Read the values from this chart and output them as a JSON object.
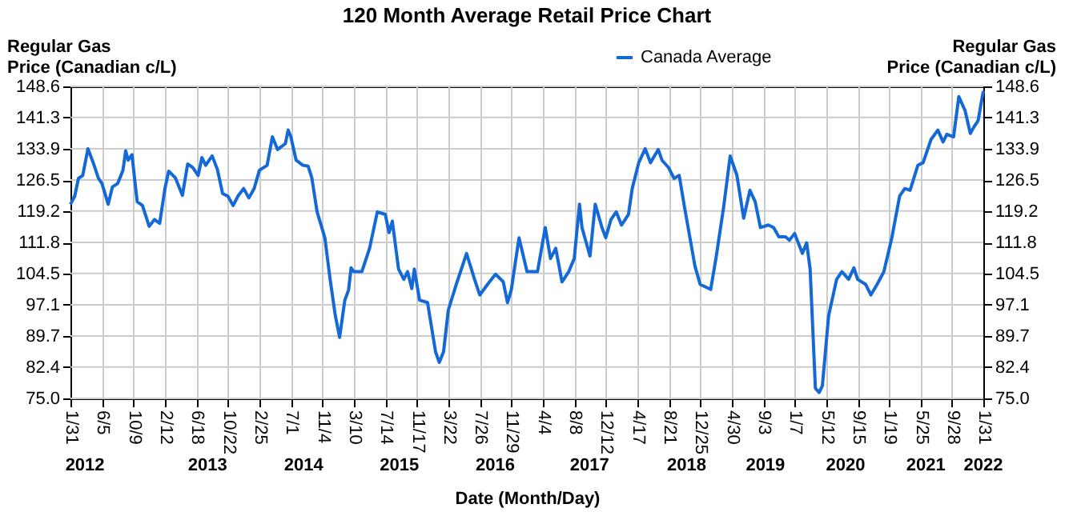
{
  "chart_data": {
    "type": "line",
    "title": "120 Month Average Retail Price Chart",
    "xlabel": "Date (Month/Day)",
    "ylabel": "Regular Gas\nPrice (Canadian c/L)",
    "y2label": "Regular Gas\nPrice (Canadian c/L)",
    "xlim": [
      "2012-01-31",
      "2022-01-31"
    ],
    "xticks": [
      {
        "value": "2012-01-31",
        "label": "1/31"
      },
      {
        "value": "2012-06-05",
        "label": "6/5"
      },
      {
        "value": "2012-10-09",
        "label": "10/9"
      },
      {
        "value": "2013-02-12",
        "label": "2/12"
      },
      {
        "value": "2013-06-18",
        "label": "6/18"
      },
      {
        "value": "2013-10-22",
        "label": "10/22"
      },
      {
        "value": "2014-02-25",
        "label": "2/25"
      },
      {
        "value": "2014-07-01",
        "label": "7/1"
      },
      {
        "value": "2014-11-04",
        "label": "11/4"
      },
      {
        "value": "2015-03-10",
        "label": "3/10"
      },
      {
        "value": "2015-07-14",
        "label": "7/14"
      },
      {
        "value": "2015-11-17",
        "label": "11/17"
      },
      {
        "value": "2016-03-22",
        "label": "3/22"
      },
      {
        "value": "2016-07-26",
        "label": "7/26"
      },
      {
        "value": "2016-11-29",
        "label": "11/29"
      },
      {
        "value": "2017-04-04",
        "label": "4/4"
      },
      {
        "value": "2017-08-08",
        "label": "8/8"
      },
      {
        "value": "2017-12-12",
        "label": "12/12"
      },
      {
        "value": "2018-04-17",
        "label": "4/17"
      },
      {
        "value": "2018-08-21",
        "label": "8/21"
      },
      {
        "value": "2018-12-25",
        "label": "12/25"
      },
      {
        "value": "2019-04-30",
        "label": "4/30"
      },
      {
        "value": "2019-09-03",
        "label": "9/3"
      },
      {
        "value": "2020-01-07",
        "label": "1/7"
      },
      {
        "value": "2020-05-12",
        "label": "5/12"
      },
      {
        "value": "2020-09-15",
        "label": "9/15"
      },
      {
        "value": "2021-01-19",
        "label": "1/19"
      },
      {
        "value": "2021-05-25",
        "label": "5/25"
      },
      {
        "value": "2021-09-28",
        "label": "9/28"
      },
      {
        "value": "2022-01-31",
        "label": "1/31"
      }
    ],
    "x2lim": [
      "2012-01-31",
      "2022-01-31"
    ],
    "x2ticks": [
      {
        "value": "2012-03-29",
        "label": "2012"
      },
      {
        "value": "2013-08-02",
        "label": "2013"
      },
      {
        "value": "2014-08-21",
        "label": "2014"
      },
      {
        "value": "2015-09-08",
        "label": "2015"
      },
      {
        "value": "2016-09-26",
        "label": "2016"
      },
      {
        "value": "2017-10-08",
        "label": "2017"
      },
      {
        "value": "2018-11-01",
        "label": "2018"
      },
      {
        "value": "2019-09-12",
        "label": "2019"
      },
      {
        "value": "2020-07-29",
        "label": "2020"
      },
      {
        "value": "2021-06-15",
        "label": "2021"
      },
      {
        "value": "2022-01-31",
        "label": "2022"
      }
    ],
    "ylim": [
      75.0,
      148.6
    ],
    "yticks": [
      {
        "value": 75,
        "label": "75.0"
      },
      82.4,
      89.7,
      97.1,
      104.5,
      111.8,
      119.2,
      126.5,
      133.9,
      141.3,
      148.6
    ],
    "y2lim": [
      75.0,
      148.6
    ],
    "y2ticks": [
      {
        "value": 75,
        "label": "75.0"
      },
      82.4,
      89.7,
      97.1,
      104.5,
      111.8,
      119.2,
      126.5,
      133.9,
      141.3,
      148.6
    ],
    "grid": true,
    "legend": "top right",
    "marker": "none",
    "line_style": "solid",
    "series": [
      {
        "name": "Canada Average",
        "color": "#1569d6",
        "x": [
          "2012-01-31",
          "2012-02-17",
          "2012-03-03",
          "2012-03-20",
          "2012-04-10",
          "2012-05-01",
          "2012-05-22",
          "2012-06-05",
          "2012-06-30",
          "2012-07-17",
          "2012-08-07",
          "2012-08-28",
          "2012-09-08",
          "2012-09-18",
          "2012-10-03",
          "2012-10-24",
          "2012-11-14",
          "2012-12-11",
          "2013-01-01",
          "2013-01-22",
          "2013-02-12",
          "2013-02-27",
          "2013-03-26",
          "2013-04-23",
          "2013-05-14",
          "2013-06-04",
          "2013-06-25",
          "2013-07-10",
          "2013-07-25",
          "2013-08-20",
          "2013-09-10",
          "2013-10-01",
          "2013-10-22",
          "2013-11-12",
          "2013-12-03",
          "2013-12-24",
          "2014-01-14",
          "2014-02-04",
          "2014-02-25",
          "2014-03-28",
          "2014-04-18",
          "2014-05-09",
          "2014-06-09",
          "2014-06-20",
          "2014-07-01",
          "2014-07-22",
          "2014-08-18",
          "2014-09-08",
          "2014-09-23",
          "2014-10-14",
          "2014-11-14",
          "2014-12-05",
          "2014-12-26",
          "2015-01-12",
          "2015-02-02",
          "2015-02-17",
          "2015-02-27",
          "2015-03-10",
          "2015-04-11",
          "2015-05-12",
          "2015-06-12",
          "2015-07-14",
          "2015-07-29",
          "2015-08-11",
          "2015-09-05",
          "2015-09-26",
          "2015-10-11",
          "2015-10-28",
          "2015-11-07",
          "2015-11-28",
          "2015-12-30",
          "2016-01-31",
          "2016-02-15",
          "2016-03-03",
          "2016-03-22",
          "2016-04-23",
          "2016-06-03",
          "2016-07-05",
          "2016-07-26",
          "2016-08-26",
          "2016-09-27",
          "2016-10-28",
          "2016-11-14",
          "2016-11-29",
          "2016-12-30",
          "2017-01-31",
          "2017-03-14",
          "2017-04-14",
          "2017-05-05",
          "2017-05-26",
          "2017-06-20",
          "2017-07-17",
          "2017-08-08",
          "2017-08-29",
          "2017-09-08",
          "2017-10-10",
          "2017-10-31",
          "2017-11-27",
          "2017-12-12",
          "2018-01-02",
          "2018-01-23",
          "2018-02-13",
          "2018-03-13",
          "2018-03-28",
          "2018-04-23",
          "2018-05-19",
          "2018-06-09",
          "2018-07-10",
          "2018-07-25",
          "2018-08-21",
          "2018-09-11",
          "2018-10-02",
          "2018-10-23",
          "2018-12-04",
          "2018-12-25",
          "2019-02-05",
          "2019-02-26",
          "2019-03-29",
          "2019-04-24",
          "2019-05-21",
          "2019-06-17",
          "2019-07-12",
          "2019-08-02",
          "2019-08-23",
          "2019-09-24",
          "2019-10-15",
          "2019-11-05",
          "2019-12-02",
          "2019-12-17",
          "2020-01-07",
          "2020-02-07",
          "2020-02-24",
          "2020-03-09",
          "2020-03-30",
          "2020-04-14",
          "2020-04-27",
          "2020-05-22",
          "2020-06-23",
          "2020-07-14",
          "2020-08-10",
          "2020-08-31",
          "2020-09-15",
          "2020-10-17",
          "2020-11-07",
          "2020-12-02",
          "2020-12-29",
          "2021-01-30",
          "2021-03-02",
          "2021-03-23",
          "2021-04-13",
          "2021-05-14",
          "2021-06-04",
          "2021-07-06",
          "2021-08-02",
          "2021-08-23",
          "2021-09-07",
          "2021-10-04",
          "2021-10-25",
          "2021-11-19",
          "2021-12-10",
          "2021-12-24",
          "2022-01-10",
          "2022-01-31"
        ],
        "values": [
          120.8,
          122.7,
          126.9,
          127.6,
          133.9,
          130.6,
          126.9,
          125.7,
          120.8,
          124.9,
          125.7,
          128.8,
          133.4,
          131.2,
          132.5,
          121.4,
          120.5,
          115.6,
          117.2,
          116.3,
          124.5,
          128.6,
          127.0,
          122.9,
          130.3,
          129.4,
          127.6,
          131.8,
          130.0,
          132.2,
          129.0,
          123.3,
          122.7,
          120.5,
          122.9,
          124.5,
          122.3,
          124.5,
          128.8,
          130.0,
          136.7,
          133.7,
          135.1,
          138.3,
          136.7,
          131.2,
          130.0,
          129.8,
          127.0,
          119.0,
          112.9,
          103.1,
          94.5,
          89.4,
          98.2,
          100.6,
          105.8,
          104.9,
          104.9,
          110.4,
          119.0,
          118.4,
          114.1,
          116.8,
          105.5,
          103.1,
          104.9,
          100.9,
          105.5,
          98.2,
          97.6,
          86.0,
          83.5,
          86.0,
          95.8,
          101.9,
          109.2,
          103.1,
          99.4,
          101.9,
          104.3,
          102.5,
          97.6,
          100.6,
          112.9,
          104.9,
          104.9,
          115.3,
          108.0,
          110.4,
          102.5,
          104.9,
          108.0,
          120.8,
          115.3,
          108.6,
          120.8,
          115.3,
          112.9,
          117.2,
          119.0,
          115.9,
          118.4,
          124.5,
          130.6,
          133.9,
          130.6,
          133.7,
          131.2,
          129.4,
          126.9,
          127.6,
          120.2,
          106.2,
          101.9,
          100.7,
          108.0,
          120.2,
          132.2,
          127.6,
          117.5,
          124.1,
          121.4,
          115.3,
          115.9,
          115.3,
          113.1,
          113.1,
          112.3,
          113.9,
          109.2,
          111.7,
          105.5,
          77.4,
          76.4,
          78.0,
          94.5,
          103.1,
          104.9,
          103.1,
          105.8,
          103.1,
          101.9,
          99.4,
          101.9,
          104.9,
          112.9,
          122.7,
          124.5,
          124.1,
          130.0,
          130.6,
          136.1,
          138.3,
          135.5,
          137.3,
          136.7,
          146.2,
          142.9,
          137.5,
          139.0,
          140.5,
          147.5
        ]
      }
    ]
  }
}
